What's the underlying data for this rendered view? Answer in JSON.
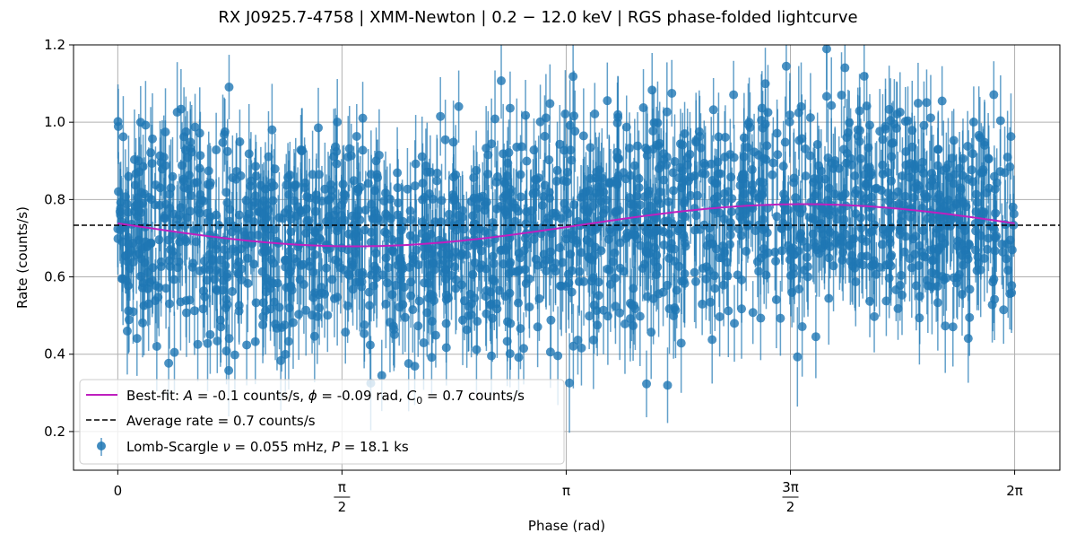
{
  "chart_data": {
    "type": "scatter",
    "title": "RX J0925.7-4758 | XMM-Newton | 0.2 − 12.0 keV | RGS phase-folded lightcurve",
    "xlabel": "Phase (rad)",
    "ylabel": "Rate (counts/s)",
    "xlim": [
      -0.31,
      6.6
    ],
    "ylim": [
      0.1,
      1.2
    ],
    "x_ticks": [
      {
        "value": 0,
        "label": "0"
      },
      {
        "value": 1.5708,
        "num": "π",
        "den": "2"
      },
      {
        "value": 3.1416,
        "label": "π"
      },
      {
        "value": 4.7124,
        "num": "3π",
        "den": "2"
      },
      {
        "value": 6.2832,
        "label": "2π"
      }
    ],
    "y_ticks": [
      {
        "value": 0.2,
        "label": "0.2"
      },
      {
        "value": 0.4,
        "label": "0.4"
      },
      {
        "value": 0.6,
        "label": "0.6"
      },
      {
        "value": 0.8,
        "label": "0.8"
      },
      {
        "value": 1.0,
        "label": "1.0"
      },
      {
        "value": 1.2,
        "label": "1.2"
      }
    ],
    "grid": true,
    "legend_position": "lower-left",
    "series": [
      {
        "name": "Best-fit: A = -0.1 counts/s, ϕ = -0.09 rad, C₀ = 0.7 counts/s",
        "kind": "line",
        "color": "#bf1fbf",
        "model": {
          "type": "sinusoid",
          "x_range": [
            0,
            6.2832
          ],
          "offset": 0.7335,
          "amplitude": -0.0545,
          "phase": -0.09
        }
      },
      {
        "name": "Average rate = 0.7 counts/s",
        "kind": "hline",
        "color": "#000000",
        "value": 0.7335,
        "dashed": true
      },
      {
        "name": "Lomb-Scargle ν = 0.055 mHz, P = 18.1 ks",
        "kind": "errorbar",
        "color": "#1f77b4",
        "points": {
          "count": 1800,
          "x_range": [
            0,
            6.2832
          ],
          "mean_model": "best-fit sinusoid",
          "scatter_sd": 0.17,
          "error_typical": 0.1,
          "y_range": [
            0.15,
            1.2
          ]
        }
      }
    ]
  },
  "legend": {
    "fit_label_parts": [
      "Best-fit: ",
      "A",
      " = -0.1 counts/s, ",
      "ϕ",
      " = -0.09 rad, ",
      "C",
      "0",
      " = 0.7 counts/s"
    ],
    "avg_label": "Average rate = 0.7 counts/s",
    "ls_label_parts": [
      "Lomb-Scargle ",
      "ν",
      " = 0.055 mHz, ",
      "P",
      " = 18.1 ks"
    ]
  }
}
